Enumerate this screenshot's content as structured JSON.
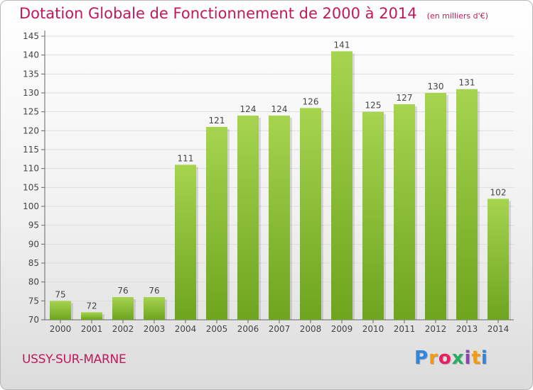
{
  "header": {
    "title": "Dotation Globale de Fonctionnement de 2000 à 2014",
    "subtitle": "(en milliers d'€)"
  },
  "commune": {
    "name": "USSY-SUR-MARNE"
  },
  "logo": {
    "text": "Proxiti",
    "letters": [
      "P",
      "r",
      "o",
      "x",
      "i",
      "t",
      "i"
    ],
    "colors": [
      "#2e86de",
      "#f39c12",
      "#e91e63",
      "#27ae60",
      "#8e44ad",
      "#f39c12",
      "#2e86de"
    ]
  },
  "chart_data": {
    "type": "bar",
    "title": "Dotation Globale de Fonctionnement de 2000 à 2014",
    "subtitle": "(en milliers d'€)",
    "xlabel": "",
    "ylabel": "",
    "categories": [
      "2000",
      "2001",
      "2002",
      "2003",
      "2004",
      "2005",
      "2006",
      "2007",
      "2008",
      "2009",
      "2010",
      "2011",
      "2012",
      "2013",
      "2014"
    ],
    "values": [
      75,
      72,
      76,
      76,
      111,
      121,
      124,
      124,
      126,
      141,
      125,
      127,
      130,
      131,
      102
    ],
    "ylim": [
      70,
      145
    ],
    "yticks": [
      70,
      75,
      80,
      85,
      90,
      95,
      100,
      105,
      110,
      115,
      120,
      125,
      130,
      135,
      140,
      145
    ],
    "grid": true,
    "data_labels": true,
    "colors": {
      "bar_light": "#a6d44f",
      "bar_dark": "#6ea41e",
      "label": "#c2185b",
      "text": "#444444",
      "grid": "#dddddd"
    }
  }
}
